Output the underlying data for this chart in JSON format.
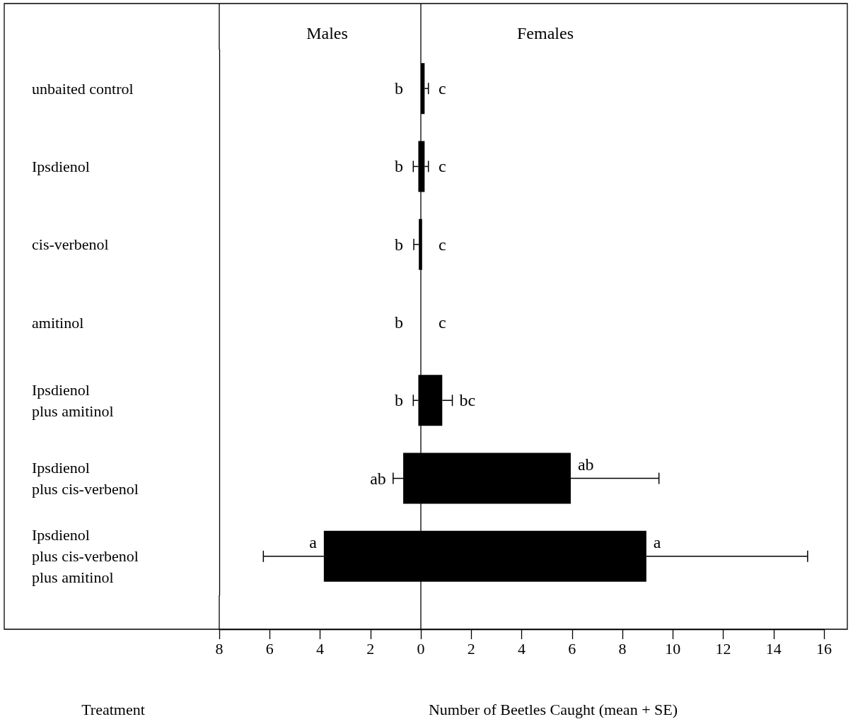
{
  "chart_data": {
    "type": "bar",
    "orientation": "horizontal",
    "stacked": true,
    "xlabel": "Number of Beetles Caught (mean + SE)",
    "ylabel": "Treatment",
    "categories": [
      "unbaited control",
      "Ipsdienol",
      "cis-verbenol",
      "amitinol",
      "Ipsdienol\nplus amitinol",
      "Ipsdienol\nplus cis-verbenol",
      "Ipsdienol\nplus cis-verbenol\nplus amitinol"
    ],
    "series": [
      {
        "color": "#000000",
        "values": [
          0,
          -0.1,
          -0.08,
          0,
          -0.1,
          -0.7,
          -3.85
        ],
        "errors": [
          null,
          [
            -0.3,
            -0.1
          ],
          [
            -0.28,
            -0.08
          ],
          null,
          [
            -0.3,
            -0.1
          ],
          [
            -1.1,
            -0.7
          ],
          [
            -6.25,
            -3.85
          ]
        ],
        "value_labels": [
          "b",
          "b",
          "b",
          "b",
          "b",
          "ab",
          "a"
        ]
      },
      {
        "color": "#000000",
        "values": [
          0.15,
          0.15,
          0.05,
          0,
          0.85,
          5.95,
          8.95
        ],
        "errors": [
          [
            0.15,
            0.3
          ],
          [
            0.15,
            0.3
          ],
          null,
          null,
          [
            0.85,
            1.25
          ],
          [
            5.95,
            9.45
          ],
          [
            8.95,
            15.35
          ]
        ],
        "value_labels": [
          "c",
          "c",
          "c",
          "c",
          "bc",
          "ab",
          "a"
        ]
      }
    ],
    "xlim": [
      -8,
      16
    ],
    "xticks": [
      {
        "value": -8,
        "label": "8"
      },
      {
        "value": -6,
        "label": "6"
      },
      {
        "value": -4,
        "label": "4"
      },
      {
        "value": -2,
        "label": "2"
      },
      0,
      2,
      4,
      6,
      8,
      10,
      12,
      14,
      16
    ],
    "annotations": [
      "Males",
      "Females"
    ],
    "ref_lines": [
      {
        "axis": "x",
        "value": 0,
        "color": "#000000"
      }
    ],
    "grid": false
  }
}
